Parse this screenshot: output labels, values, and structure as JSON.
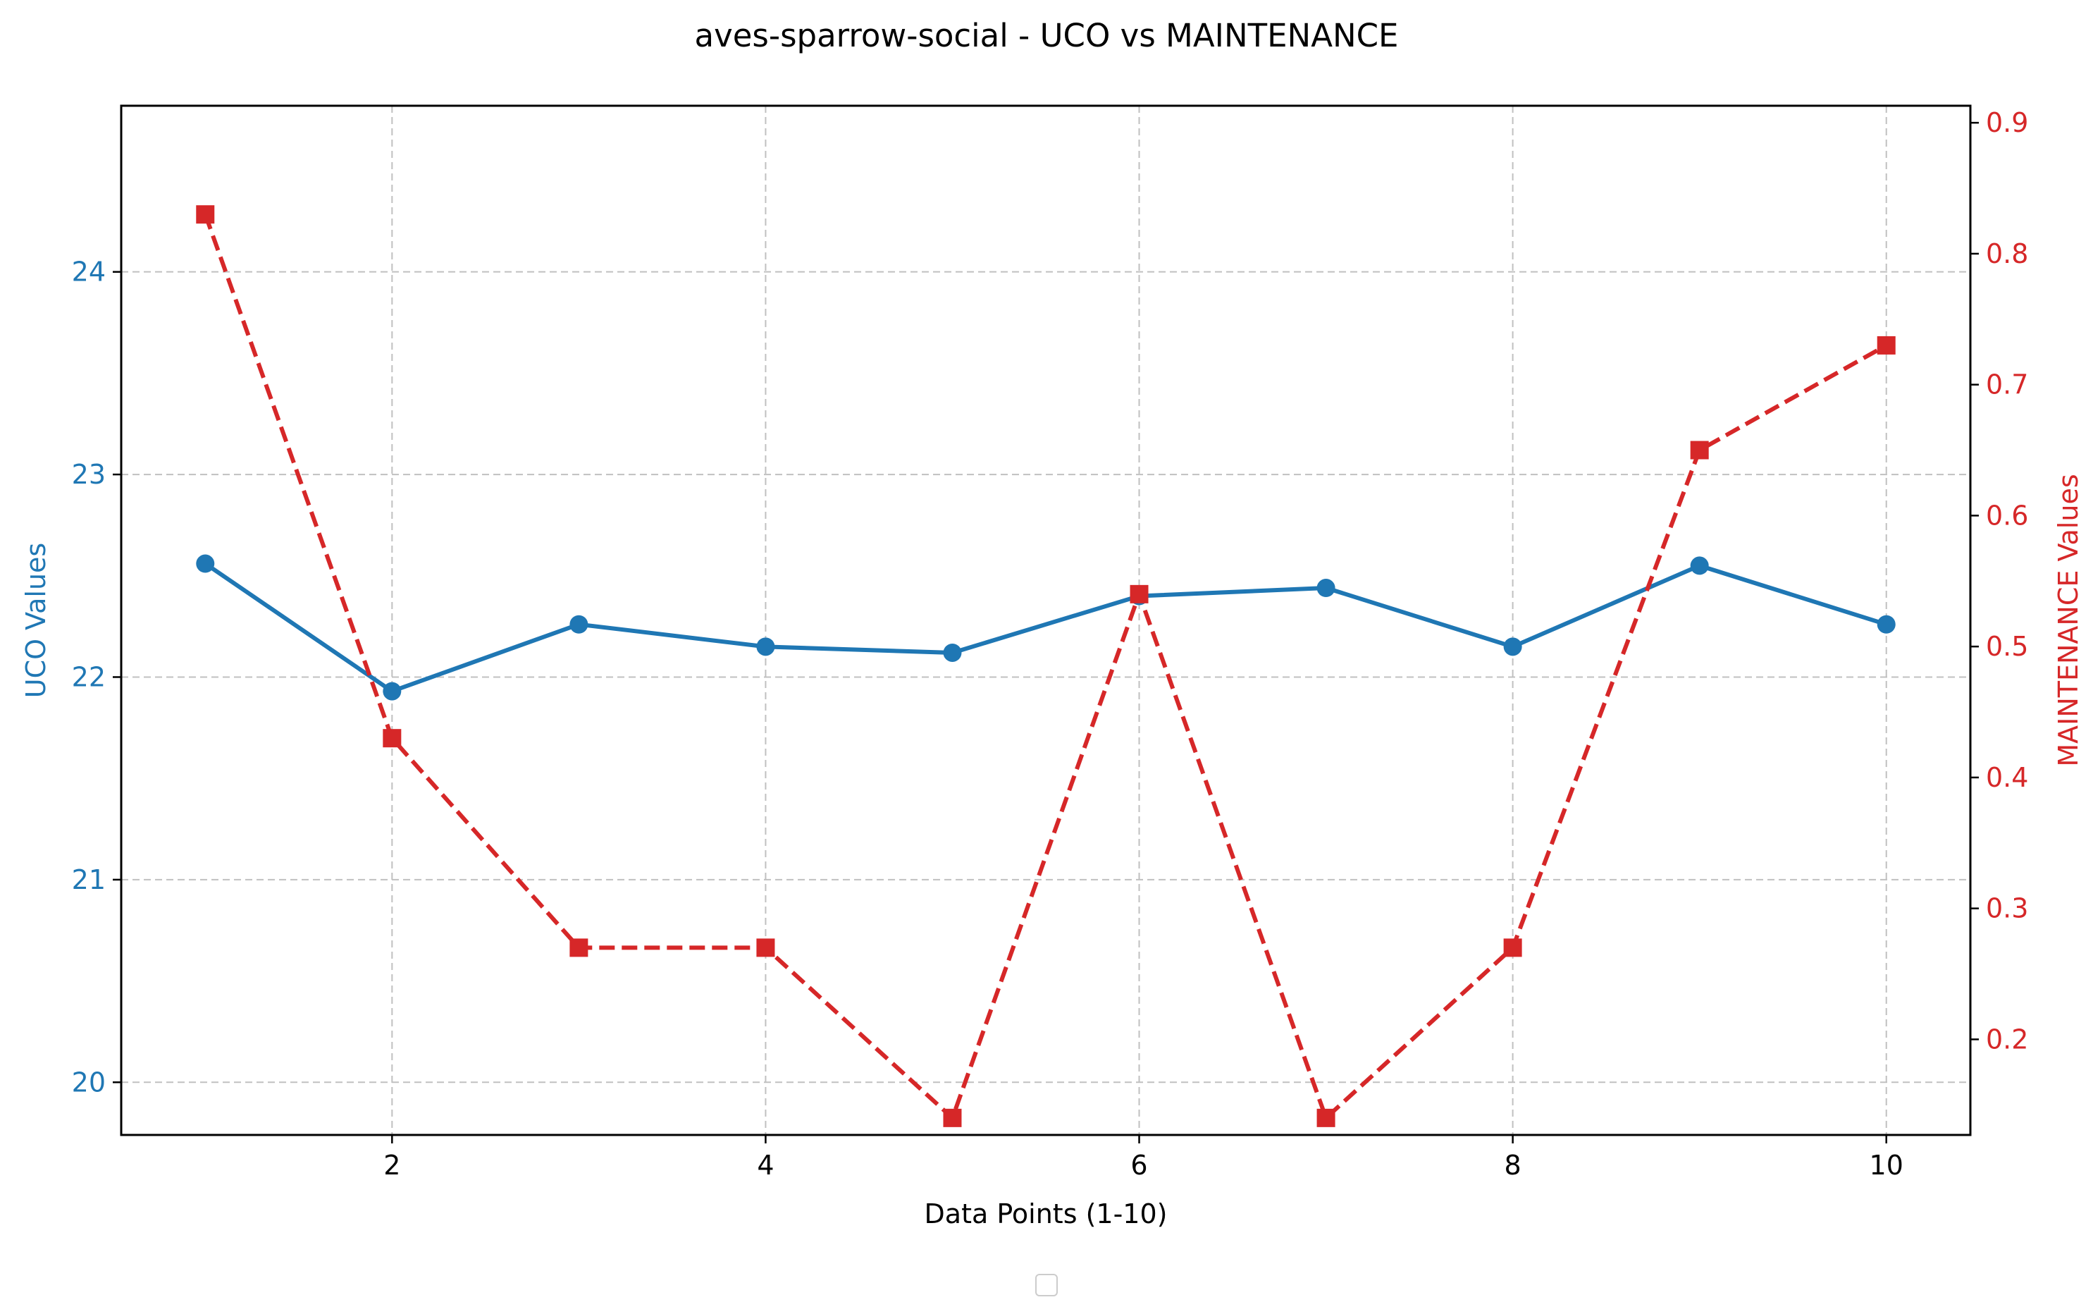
{
  "chart_data": {
    "type": "line",
    "title": "aves-sparrow-social - UCO vs MAINTENANCE",
    "xlabel": "Data Points (1-10)",
    "ylabel_left": "UCO Values",
    "ylabel_right": "MAINTENANCE Values",
    "x": [
      1,
      2,
      3,
      4,
      5,
      6,
      7,
      8,
      9,
      10
    ],
    "xlim": [
      0.55,
      10.45
    ],
    "ylim_left": [
      19.74,
      24.82
    ],
    "ylim_right": [
      0.127,
      0.913
    ],
    "x_ticks": [
      2,
      4,
      6,
      8,
      10
    ],
    "y_ticks_left": [
      20,
      21,
      22,
      23,
      24
    ],
    "y_ticks_right": [
      0.2,
      0.3,
      0.4,
      0.5,
      0.6,
      0.7,
      0.8,
      0.9
    ],
    "grid": true,
    "legend": "bottom-center (empty)",
    "series": [
      {
        "axis": "left",
        "color": "#1f77b4",
        "marker": "circle",
        "linestyle": "solid",
        "values": [
          22.56,
          21.93,
          22.26,
          22.15,
          22.12,
          22.4,
          22.44,
          22.15,
          22.55,
          22.26
        ]
      },
      {
        "axis": "right",
        "color": "#d62728",
        "marker": "square",
        "linestyle": "dashed",
        "values": [
          0.83,
          0.43,
          0.27,
          0.27,
          0.14,
          0.54,
          0.14,
          0.27,
          0.65,
          0.73
        ]
      }
    ]
  }
}
